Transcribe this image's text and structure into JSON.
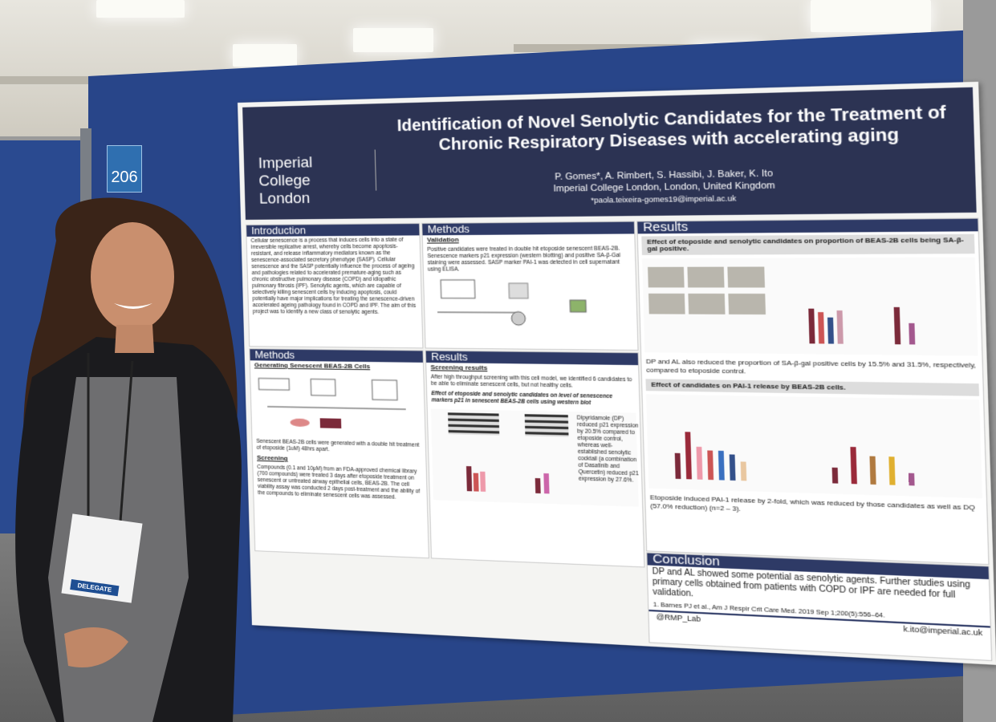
{
  "booth": "206",
  "badge": {
    "role": "DELEGATE"
  },
  "poster": {
    "institution": "Imperial College London",
    "title": "Identification of Novel Senolytic Candidates for the Treatment of Chronic Respiratory Diseases with accelerating aging",
    "authors": "P. Gomes*, A. Rimbert, S. Hassibi, J. Baker, K. Ito",
    "affiliation": "Imperial College London, London, United Kingdom",
    "email": "*paola.teixeira-gomes19@imperial.ac.uk",
    "introduction": {
      "heading": "Introduction",
      "text": "Cellular senescence is a process that induces cells into a state of irreversible replicative arrest, whereby cells become apoptosis-resistant, and release inflammatory mediators known as the senescence-associated secretory phenotype (SASP). Cellular senescence and the SASP potentially influence the process of ageing and pathologies related to accelerated premature-aging such as chronic obstructive pulmonary disease (COPD) and idiopathic pulmonary fibrosis (IPF). Senolytic agents, which are capable of selectively killing senescent cells by inducing apoptosis, could potentially have major implications for treating the senescence-driven accelerated ageing pathology found in COPD and IPF. The aim of this project was to identify a new class of senolytic agents."
    },
    "validation": {
      "heading": "Methods",
      "subheading": "Validation",
      "text": "Positive candidates were treated in double hit etoposide senescent BEAS-2B. Senescence markers p21 expression (western blotting) and positive SA-β-Gal staining were assessed. SASP marker PAI-1 was detected in cell supernatant using ELISA."
    },
    "generating": {
      "heading": "Methods",
      "subheading": "Generating Senescent BEAS-2B Cells",
      "text": "Senescent BEAS-2B cells were generated with a double hit treatment of etoposide (1uM) 48hrs apart.",
      "screening": "Screening",
      "screening_text": "Compounds (0.1 and 10μM) from an FDA-approved chemical library (700 compounds) were treated 3 days after etoposide treatment on senescent or untreated airway epithelial cells, BEAS-2B. The cell viability assay was conducted 2 days post-treatment and the ability of the compounds to eliminate senescent cells was assessed."
    },
    "screening_results": {
      "heading": "Results",
      "subheading": "Screening results",
      "text": "After high throughput screening with this cell model, we identified 6 candidates to be able to eliminate senescent cells, but not healthy cells.",
      "figure_title": "Effect of etoposide and senolytic candidates on level of senescence markers p21 in senescent BEAS-2B cells using western blot",
      "figure_text": "Dipyridamole (DP) reduced p21 expression by 20.5% compared to etoposide control, whereas well-established senolytic cocktail (a combination of Dasatinib and Quercetin) reduced p21 expression by 27.6%."
    },
    "results": {
      "heading": "Results",
      "figure1_title": "Effect of etoposide and senolytic candidates on proportion of BEAS-2B cells being SA-β-gal positive.",
      "figure1_text": "DP and AL also reduced the proportion of SA-β-gal positive cells by 15.5% and 31.5%, respectively, compared to etoposide control.",
      "figure2_title": "Effect of candidates on PAI-1 release by BEAS-2B cells.",
      "figure2_text": "Etoposide induced PAI-1 release by 2-fold, which was reduced by those candidates as well as DQ (57.0% reduction) (n=2 – 3)."
    },
    "conclusion": {
      "heading": "Conclusion",
      "text": "DP and AL showed some potential as senolytic agents. Further studies using primary cells obtained from patients with COPD or IPF are needed for full validation."
    },
    "reference": "1. Barnes PJ et al., Am J Respir Crit Care Med. 2019 Sep 1;200(5):556–64.",
    "twitter": "@RMP_Lab",
    "contact": "k.ito@imperial.ac.uk"
  }
}
